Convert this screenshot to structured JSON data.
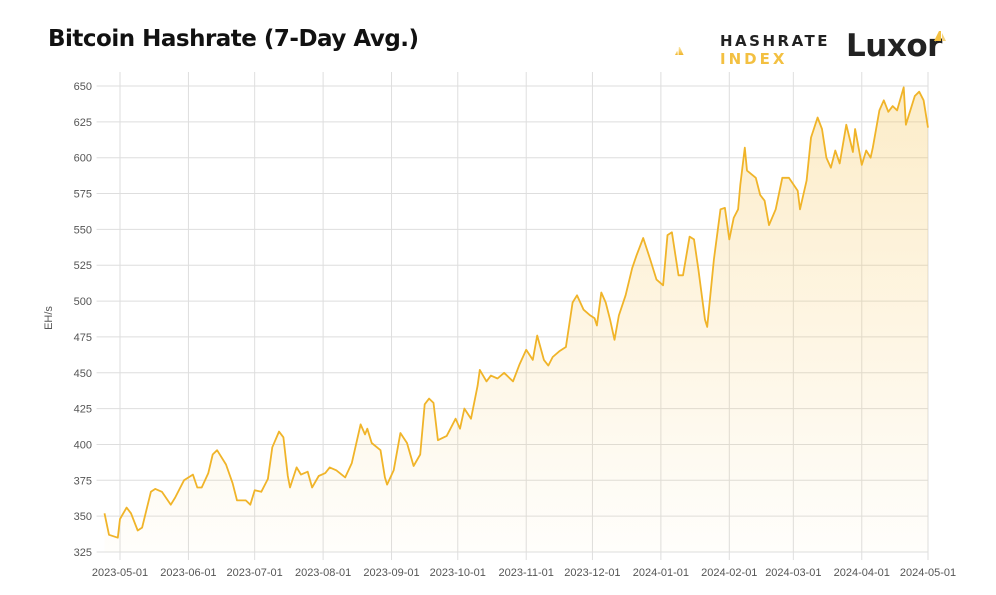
{
  "header": {
    "title": "Bitcoin Hashrate (7-Day Avg.)"
  },
  "logos": {
    "hashrate_index": [
      "HASHRATE",
      "INDEX"
    ],
    "luxor": "Luxor"
  },
  "colors": {
    "line": "#f0b429",
    "fill": "#f6c14a",
    "grid": "#dddddd",
    "brand_accent": "#f3c041"
  },
  "chart_data": {
    "type": "area",
    "title": "Bitcoin Hashrate (7-Day Avg.)",
    "xlabel": "",
    "ylabel": "EH/s",
    "ylim": [
      325,
      650
    ],
    "xlim": [
      "2023-04-24",
      "2024-05-01"
    ],
    "grid": true,
    "yticks": [
      325,
      350,
      375,
      400,
      425,
      450,
      475,
      500,
      525,
      550,
      575,
      600,
      625,
      650
    ],
    "xticks": [
      "2023-05-01",
      "2023-06-01",
      "2023-07-01",
      "2023-08-01",
      "2023-09-01",
      "2023-10-01",
      "2023-11-01",
      "2023-12-01",
      "2024-01-01",
      "2024-02-01",
      "2024-03-01",
      "2024-04-01",
      "2024-05-01"
    ],
    "series": [
      {
        "x": [
          "2023-04-24",
          "2023-04-26",
          "2023-04-30",
          "2023-05-01",
          "2023-05-04",
          "2023-05-06",
          "2023-05-09",
          "2023-05-11",
          "2023-05-15",
          "2023-05-17",
          "2023-05-20",
          "2023-05-24",
          "2023-05-26",
          "2023-05-30",
          "2023-06-03",
          "2023-06-05",
          "2023-06-07",
          "2023-06-10",
          "2023-06-12",
          "2023-06-14",
          "2023-06-18",
          "2023-06-21",
          "2023-06-23",
          "2023-06-27",
          "2023-06-29",
          "2023-07-01",
          "2023-07-04",
          "2023-07-07",
          "2023-07-09",
          "2023-07-12",
          "2023-07-14",
          "2023-07-16",
          "2023-07-17",
          "2023-07-20",
          "2023-07-22",
          "2023-07-25",
          "2023-07-27",
          "2023-07-30",
          "2023-08-02",
          "2023-08-04",
          "2023-08-07",
          "2023-08-11",
          "2023-08-14",
          "2023-08-18",
          "2023-08-20",
          "2023-08-21",
          "2023-08-23",
          "2023-08-27",
          "2023-08-29",
          "2023-08-30",
          "2023-09-02",
          "2023-09-05",
          "2023-09-08",
          "2023-09-11",
          "2023-09-14",
          "2023-09-16",
          "2023-09-18",
          "2023-09-20",
          "2023-09-22",
          "2023-09-26",
          "2023-09-30",
          "2023-10-02",
          "2023-10-04",
          "2023-10-07",
          "2023-10-10",
          "2023-10-11",
          "2023-10-14",
          "2023-10-16",
          "2023-10-19",
          "2023-10-22",
          "2023-10-26",
          "2023-10-29",
          "2023-11-01",
          "2023-11-04",
          "2023-11-06",
          "2023-11-09",
          "2023-11-11",
          "2023-11-13",
          "2023-11-16",
          "2023-11-19",
          "2023-11-22",
          "2023-11-24",
          "2023-11-27",
          "2023-11-30",
          "2023-12-02",
          "2023-12-03",
          "2023-12-05",
          "2023-12-07",
          "2023-12-09",
          "2023-12-11",
          "2023-12-13",
          "2023-12-16",
          "2023-12-19",
          "2023-12-21",
          "2023-12-24",
          "2023-12-27",
          "2023-12-30",
          "2024-01-02",
          "2024-01-04",
          "2024-01-06",
          "2024-01-09",
          "2024-01-11",
          "2024-01-14",
          "2024-01-16",
          "2024-01-18",
          "2024-01-21",
          "2024-01-22",
          "2024-01-25",
          "2024-01-28",
          "2024-01-30",
          "2024-02-01",
          "2024-02-03",
          "2024-02-05",
          "2024-02-06",
          "2024-02-08",
          "2024-02-09",
          "2024-02-13",
          "2024-02-15",
          "2024-02-17",
          "2024-02-19",
          "2024-02-22",
          "2024-02-25",
          "2024-02-28",
          "2024-03-03",
          "2024-03-04",
          "2024-03-07",
          "2024-03-09",
          "2024-03-12",
          "2024-03-14",
          "2024-03-16",
          "2024-03-18",
          "2024-03-20",
          "2024-03-22",
          "2024-03-25",
          "2024-03-28",
          "2024-03-29",
          "2024-04-01",
          "2024-04-03",
          "2024-04-05",
          "2024-04-06",
          "2024-04-09",
          "2024-04-11",
          "2024-04-13",
          "2024-04-15",
          "2024-04-17",
          "2024-04-20",
          "2024-04-21",
          "2024-04-25",
          "2024-04-27",
          "2024-04-29",
          "2024-05-01"
        ],
        "y": [
          352,
          337,
          335,
          348,
          356,
          352,
          340,
          342,
          367,
          369,
          367,
          358,
          363,
          375,
          379,
          370,
          370,
          380,
          393,
          396,
          386,
          373,
          361,
          361,
          358,
          368,
          367,
          376,
          398,
          409,
          405,
          378,
          370,
          384,
          379,
          381,
          370,
          378,
          380,
          384,
          382,
          377,
          387,
          414,
          407,
          411,
          401,
          396,
          377,
          372,
          382,
          408,
          401,
          385,
          393,
          428,
          432,
          429,
          403,
          406,
          418,
          411,
          425,
          418,
          441,
          452,
          444,
          448,
          446,
          450,
          444,
          456,
          466,
          459,
          476,
          459,
          455,
          461,
          465,
          468,
          499,
          504,
          494,
          490,
          488,
          483,
          506,
          499,
          487,
          473,
          490,
          504,
          523,
          532,
          544,
          530,
          515,
          511,
          546,
          548,
          518,
          518,
          545,
          543,
          522,
          487,
          482,
          529,
          564,
          565,
          543,
          558,
          564,
          581,
          607,
          591,
          586,
          574,
          570,
          553,
          564,
          586,
          586,
          577,
          564,
          584,
          614,
          628,
          620,
          600,
          593,
          605,
          596,
          623,
          604,
          620,
          595,
          605,
          600,
          607,
          633,
          640,
          632,
          636,
          633,
          649,
          623,
          643,
          646,
          640,
          621
        ]
      }
    ]
  }
}
